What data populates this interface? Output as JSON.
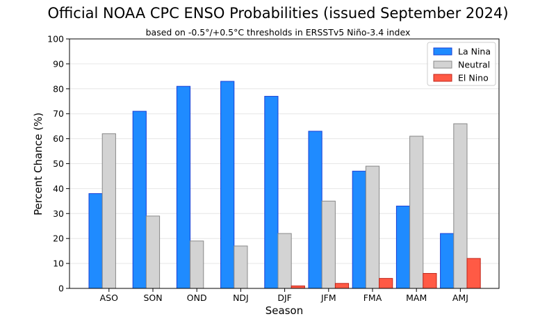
{
  "chart_data": {
    "type": "bar",
    "title": "Official NOAA CPC ENSO Probabilities (issued September 2024)",
    "subtitle": "based on -0.5°/+0.5°C thresholds in ERSSTv5 Niño-3.4 index",
    "xlabel": "Season",
    "ylabel": "Percent Chance (%)",
    "ylim": [
      0,
      100
    ],
    "yticks": [
      0,
      10,
      20,
      30,
      40,
      50,
      60,
      70,
      80,
      90,
      100
    ],
    "grid": true,
    "legend_position": "top-right",
    "categories": [
      "ASO",
      "SON",
      "OND",
      "NDJ",
      "DJF",
      "JFM",
      "FMA",
      "MAM",
      "AMJ"
    ],
    "series": [
      {
        "name": "La Nina",
        "color": "#1f8bff",
        "edge": "#1a3fd6",
        "values": [
          38,
          71,
          81,
          83,
          77,
          63,
          47,
          33,
          22
        ]
      },
      {
        "name": "Neutral",
        "color": "#d3d3d3",
        "edge": "#888888",
        "values": [
          62,
          29,
          19,
          17,
          22,
          35,
          49,
          61,
          66
        ]
      },
      {
        "name": "El Nino",
        "color": "#ff5a45",
        "edge": "#c0241a",
        "values": [
          0,
          0,
          0,
          0,
          1,
          2,
          4,
          6,
          12
        ]
      }
    ]
  }
}
